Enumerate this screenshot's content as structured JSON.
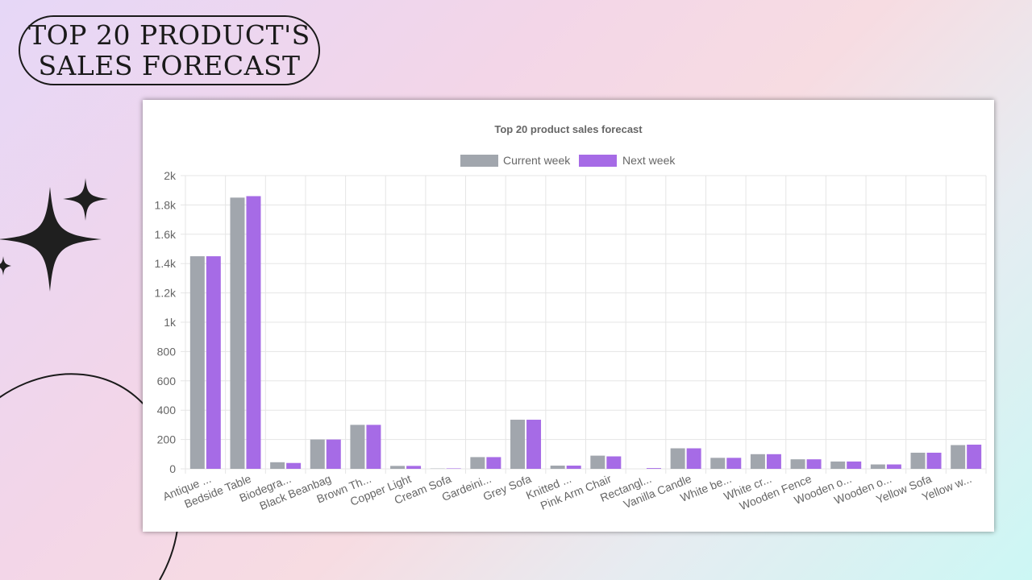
{
  "page": {
    "title_line1": "TOP 20 PRODUCT'S",
    "title_line2": "SALES FORECAST"
  },
  "colors": {
    "current_week": "#a1a6ad",
    "next_week": "#a66be6",
    "grid": "#e5e5e5"
  },
  "chart_data": {
    "type": "bar",
    "title": "Top 20 product sales forecast",
    "categories": [
      "Antique ...",
      "Bedside Table",
      "Biodegra...",
      "Black Beanbag",
      "Brown Th...",
      "Copper Light",
      "Cream Sofa",
      "Gardeini...",
      "Grey Sofa",
      "Knitted ...",
      "Pink Arm Chair",
      "Rectangl...",
      "Vanilla Candle",
      "White be...",
      "White cr...",
      "Wooden Fence",
      "Wooden o...",
      "Wooden o...",
      "Yellow Sofa",
      "Yellow w..."
    ],
    "series": [
      {
        "name": "Current week",
        "values": [
          1450,
          1850,
          45,
          200,
          300,
          20,
          2,
          80,
          335,
          22,
          90,
          0,
          140,
          75,
          100,
          65,
          50,
          30,
          110,
          162
        ]
      },
      {
        "name": "Next week",
        "values": [
          1450,
          1860,
          40,
          200,
          300,
          20,
          3,
          80,
          335,
          22,
          85,
          5,
          140,
          75,
          100,
          65,
          50,
          30,
          110,
          165
        ]
      }
    ],
    "ylim": [
      0,
      2000
    ],
    "yticks": [
      "0",
      "200",
      "400",
      "600",
      "800",
      "1k",
      "1.2k",
      "1.4k",
      "1.6k",
      "1.8k",
      "2k"
    ],
    "xlabel": "",
    "ylabel": "",
    "grid": true,
    "legend_position": "top"
  }
}
